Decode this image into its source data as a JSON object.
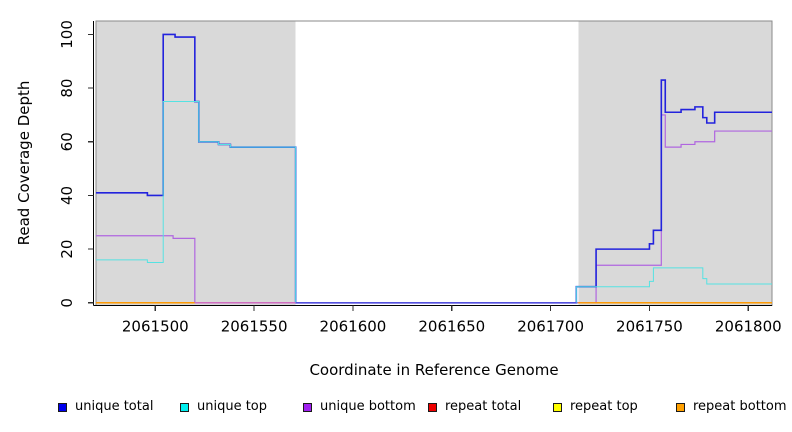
{
  "chart_data": {
    "type": "line",
    "step": "after",
    "title": "",
    "xlabel": "Coordinate in Reference Genome",
    "ylabel": "Read Coverage Depth",
    "xlim": [
      2061470,
      2061812
    ],
    "ylim": [
      0,
      104
    ],
    "x_ticks": [
      2061500,
      2061550,
      2061600,
      2061650,
      2061700,
      2061750,
      2061800
    ],
    "y_ticks": [
      0,
      20,
      40,
      60,
      80,
      100
    ],
    "grid": false,
    "legend_position": "bottom",
    "shaded_regions": [
      {
        "name": "repeat-region-left",
        "from": 2061470,
        "to": 2061571,
        "color": "#d9d9d9"
      },
      {
        "name": "repeat-region-right",
        "from": 2061714,
        "to": 2061812,
        "color": "#d9d9d9"
      }
    ],
    "draw_order": [
      "repeat top",
      "repeat total",
      "repeat bottom",
      "unique bottom",
      "unique total",
      "unique top"
    ],
    "series": [
      {
        "name": "unique total",
        "color": "#2323dd",
        "width": 1.6,
        "points": [
          [
            2061470,
            41
          ],
          [
            2061496,
            40
          ],
          [
            2061504,
            100
          ],
          [
            2061510,
            99
          ],
          [
            2061520,
            75
          ],
          [
            2061522,
            60
          ],
          [
            2061532,
            59
          ],
          [
            2061538,
            58
          ],
          [
            2061571,
            0
          ],
          [
            2061713,
            6
          ],
          [
            2061723,
            20
          ],
          [
            2061750,
            22
          ],
          [
            2061752,
            27
          ],
          [
            2061756,
            83
          ],
          [
            2061758,
            71
          ],
          [
            2061766,
            72
          ],
          [
            2061773,
            73
          ],
          [
            2061777,
            69
          ],
          [
            2061779,
            67
          ],
          [
            2061783,
            71
          ],
          [
            2061812,
            71
          ]
        ]
      },
      {
        "name": "unique top",
        "color": "#55e2e2",
        "width": 1.0,
        "points": [
          [
            2061470,
            16
          ],
          [
            2061496,
            15
          ],
          [
            2061504,
            75
          ],
          [
            2061522,
            60
          ],
          [
            2061532,
            59
          ],
          [
            2061538,
            58
          ],
          [
            2061571,
            0
          ],
          [
            2061713,
            6
          ],
          [
            2061750,
            8
          ],
          [
            2061752,
            13
          ],
          [
            2061777,
            9
          ],
          [
            2061779,
            7
          ],
          [
            2061812,
            7
          ]
        ]
      },
      {
        "name": "unique bottom",
        "color": "#b066e0",
        "width": 1.2,
        "points": [
          [
            2061470,
            25
          ],
          [
            2061509,
            24
          ],
          [
            2061520,
            0
          ],
          [
            2061723,
            14
          ],
          [
            2061756,
            70
          ],
          [
            2061758,
            58
          ],
          [
            2061766,
            59
          ],
          [
            2061773,
            60
          ],
          [
            2061783,
            64
          ],
          [
            2061812,
            64
          ]
        ]
      },
      {
        "name": "repeat total",
        "color": "#ee0000",
        "width": 1.0,
        "points": [
          [
            2061470,
            0
          ],
          [
            2061812,
            0
          ]
        ]
      },
      {
        "name": "repeat top",
        "color": "#ffff00",
        "width": 1.0,
        "points": [
          [
            2061470,
            0
          ],
          [
            2061812,
            0
          ]
        ]
      },
      {
        "name": "repeat bottom",
        "color": "#ff9a00",
        "width": 1.4,
        "points": [
          [
            2061470,
            0
          ],
          [
            2061812,
            0
          ]
        ]
      }
    ],
    "zero_line_overlays": [
      {
        "from": 2061470,
        "to": 2061520,
        "color": "#ff9a00"
      },
      {
        "from": 2061520,
        "to": 2061571,
        "color": "#cf6bc8"
      },
      {
        "from": 2061571,
        "to": 2061713,
        "color": "#5a51dd"
      },
      {
        "from": 2061714,
        "to": 2061812,
        "color": "#ff9a00"
      }
    ]
  },
  "legend": {
    "items": [
      {
        "label": "unique total",
        "fill": "#0000ee",
        "border": "#1a1a1a"
      },
      {
        "label": "unique top",
        "fill": "#00eeee",
        "border": "#1a1a1a"
      },
      {
        "label": "unique bottom",
        "fill": "#a020f0",
        "border": "#1a1a1a"
      },
      {
        "label": "repeat total",
        "fill": "#ee0000",
        "border": "#1a1a1a"
      },
      {
        "label": "repeat top",
        "fill": "#ffff00",
        "border": "#1a1a1a"
      },
      {
        "label": "repeat bottom",
        "fill": "#ffa000",
        "border": "#1a1a1a"
      }
    ]
  }
}
